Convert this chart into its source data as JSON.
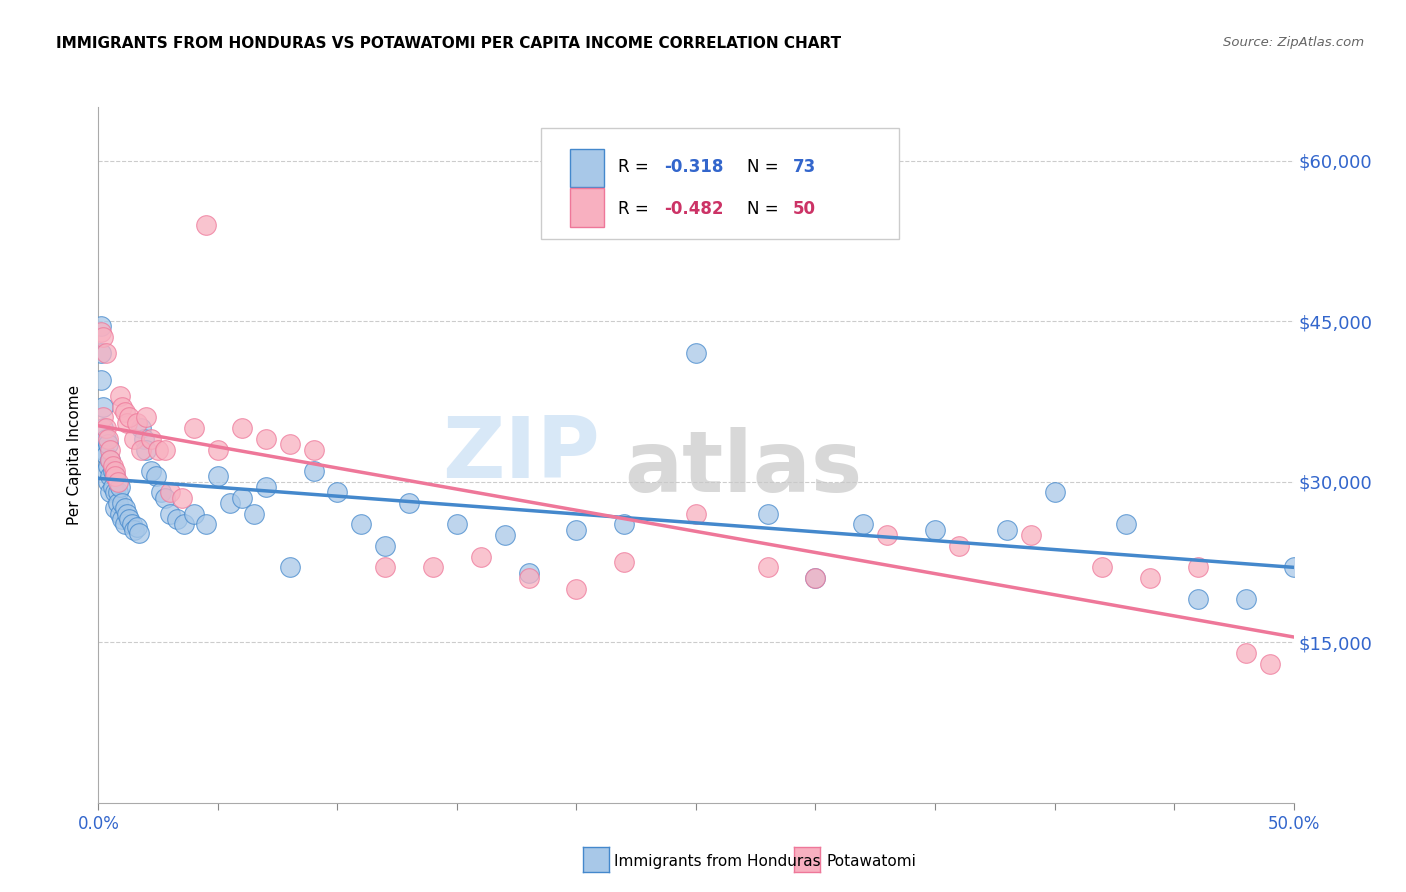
{
  "title": "IMMIGRANTS FROM HONDURAS VS POTAWATOMI PER CAPITA INCOME CORRELATION CHART",
  "source": "Source: ZipAtlas.com",
  "ylabel": "Per Capita Income",
  "yticks": [
    15000,
    30000,
    45000,
    60000
  ],
  "ytick_labels": [
    "$15,000",
    "$30,000",
    "$45,000",
    "$60,000"
  ],
  "blue_color": "#a8c8e8",
  "pink_color": "#f8b0c0",
  "line_blue": "#4488cc",
  "line_pink": "#ee7799",
  "text_blue": "#3366cc",
  "text_pink": "#cc3366",
  "xlim": [
    0,
    0.5
  ],
  "ylim": [
    0,
    65000
  ],
  "blue_scatter_x": [
    0.001,
    0.001,
    0.001,
    0.002,
    0.002,
    0.002,
    0.003,
    0.003,
    0.003,
    0.004,
    0.004,
    0.004,
    0.005,
    0.005,
    0.005,
    0.006,
    0.006,
    0.007,
    0.007,
    0.007,
    0.008,
    0.008,
    0.009,
    0.009,
    0.01,
    0.01,
    0.011,
    0.011,
    0.012,
    0.013,
    0.014,
    0.015,
    0.016,
    0.017,
    0.018,
    0.019,
    0.02,
    0.022,
    0.024,
    0.026,
    0.028,
    0.03,
    0.033,
    0.036,
    0.04,
    0.045,
    0.05,
    0.055,
    0.06,
    0.065,
    0.07,
    0.08,
    0.09,
    0.1,
    0.11,
    0.12,
    0.13,
    0.15,
    0.17,
    0.18,
    0.2,
    0.22,
    0.25,
    0.28,
    0.3,
    0.32,
    0.35,
    0.38,
    0.4,
    0.43,
    0.46,
    0.48,
    0.5
  ],
  "blue_scatter_y": [
    44500,
    42000,
    39500,
    37000,
    35000,
    33000,
    34000,
    32500,
    31000,
    33500,
    31500,
    30000,
    32000,
    30500,
    29000,
    31000,
    29500,
    30500,
    29000,
    27500,
    29000,
    28000,
    29500,
    27000,
    28000,
    26500,
    27500,
    26000,
    27000,
    26500,
    26000,
    25500,
    25800,
    25200,
    35000,
    34000,
    33000,
    31000,
    30500,
    29000,
    28500,
    27000,
    26500,
    26000,
    27000,
    26000,
    30500,
    28000,
    28500,
    27000,
    29500,
    22000,
    31000,
    29000,
    26000,
    24000,
    28000,
    26000,
    25000,
    21500,
    25500,
    26000,
    42000,
    27000,
    21000,
    26000,
    25500,
    25500,
    29000,
    26000,
    19000,
    19000,
    22000
  ],
  "pink_scatter_x": [
    0.001,
    0.002,
    0.002,
    0.003,
    0.003,
    0.004,
    0.005,
    0.005,
    0.006,
    0.007,
    0.007,
    0.008,
    0.009,
    0.01,
    0.011,
    0.012,
    0.013,
    0.015,
    0.016,
    0.018,
    0.02,
    0.022,
    0.025,
    0.028,
    0.03,
    0.035,
    0.04,
    0.045,
    0.05,
    0.06,
    0.07,
    0.08,
    0.09,
    0.12,
    0.14,
    0.16,
    0.18,
    0.2,
    0.22,
    0.25,
    0.28,
    0.3,
    0.33,
    0.36,
    0.39,
    0.42,
    0.44,
    0.46,
    0.48,
    0.49
  ],
  "pink_scatter_y": [
    44000,
    43500,
    36000,
    42000,
    35000,
    34000,
    33000,
    32000,
    31500,
    31000,
    30500,
    30000,
    38000,
    37000,
    36500,
    35500,
    36000,
    34000,
    35500,
    33000,
    36000,
    34000,
    33000,
    33000,
    29000,
    28500,
    35000,
    54000,
    33000,
    35000,
    34000,
    33500,
    33000,
    22000,
    22000,
    23000,
    21000,
    20000,
    22500,
    27000,
    22000,
    21000,
    25000,
    24000,
    25000,
    22000,
    21000,
    22000,
    14000,
    13000
  ]
}
